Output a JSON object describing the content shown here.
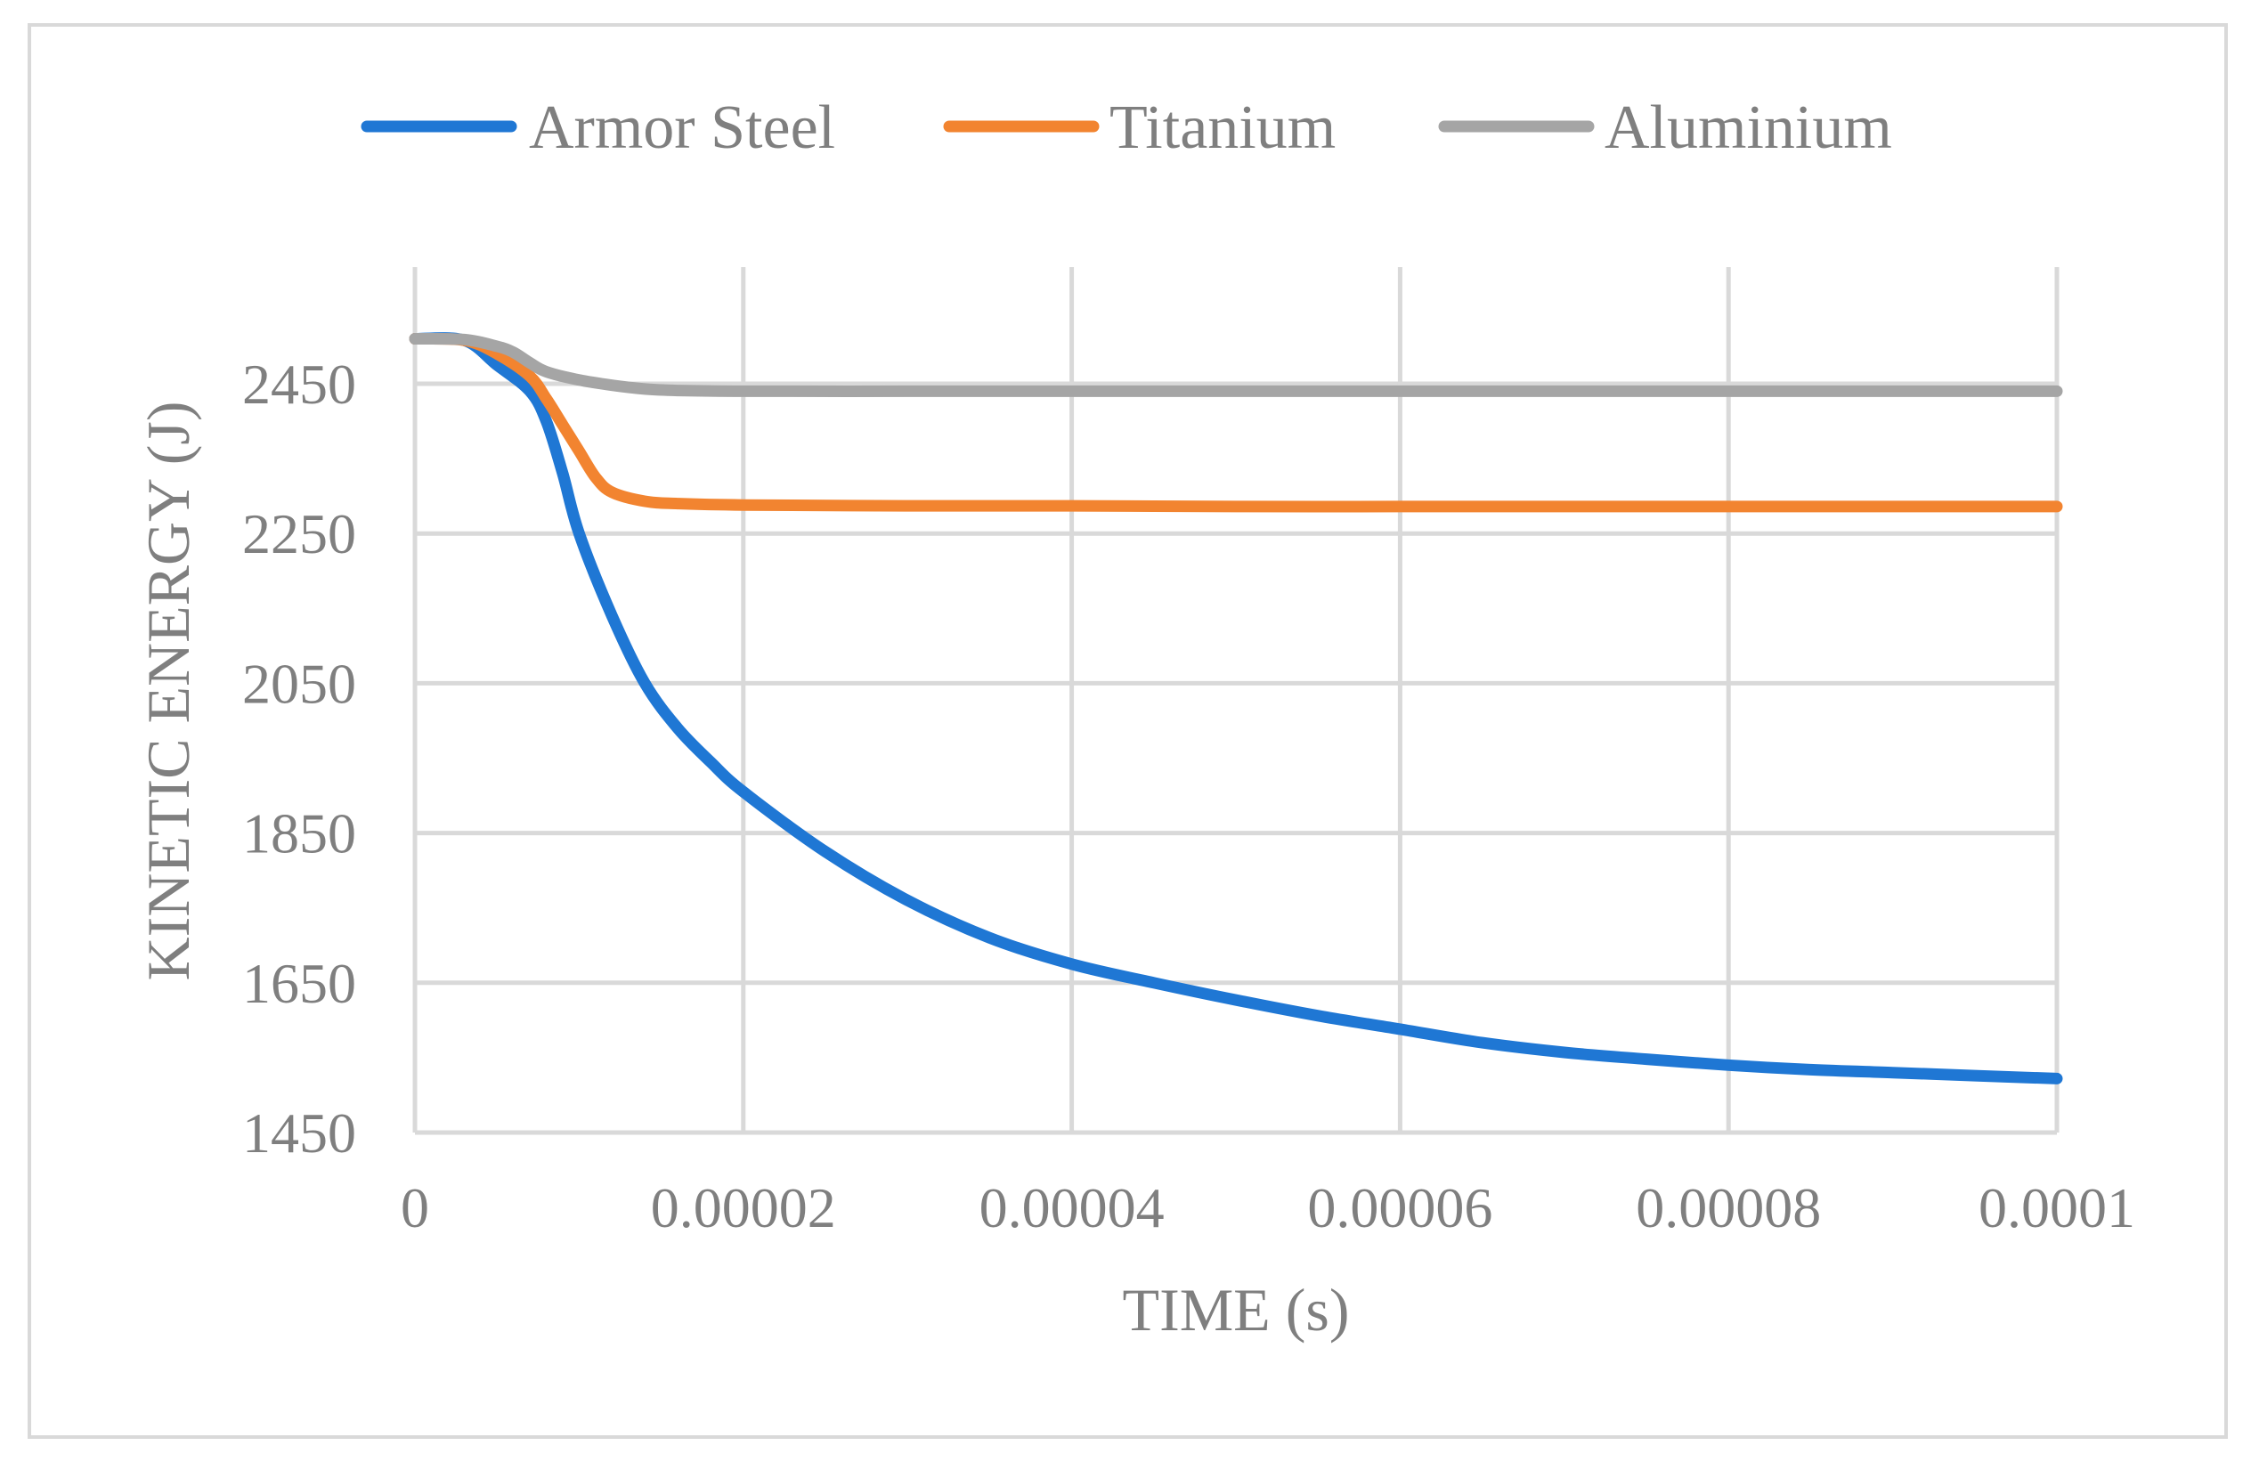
{
  "chart_data": {
    "type": "line",
    "title": "",
    "xlabel": "TIME (s)",
    "ylabel": "KINETIC ENERGY (J)",
    "xlim": [
      0,
      0.0001
    ],
    "ylim": [
      1450,
      2550
    ],
    "x_ticks": [
      "0",
      "0.00002",
      "0.00004",
      "0.00006",
      "0.00008",
      "0.0001"
    ],
    "x_tick_values": [
      0,
      2e-05,
      4e-05,
      6e-05,
      8e-05,
      0.0001
    ],
    "y_ticks": [
      "1450",
      "1650",
      "1850",
      "2050",
      "2250",
      "2450"
    ],
    "y_tick_values": [
      1450,
      1650,
      1850,
      2050,
      2250,
      2450
    ],
    "grid": true,
    "legend_position": "top-center",
    "series": [
      {
        "name": "Armor Steel",
        "color": "#1f77d4",
        "x": [
          0,
          3e-06,
          5e-06,
          7e-06,
          8e-06,
          9e-06,
          1e-05,
          1.2e-05,
          1.4e-05,
          1.6e-05,
          1.8e-05,
          2e-05,
          2.5e-05,
          3e-05,
          3.5e-05,
          4e-05,
          4.5e-05,
          5e-05,
          5.5e-05,
          6e-05,
          6.5e-05,
          7e-05,
          7.5e-05,
          8e-05,
          8.5e-05,
          9e-05,
          9.5e-05,
          0.0001
        ],
        "values": [
          2510,
          2508,
          2475,
          2440,
          2400,
          2330,
          2250,
          2140,
          2050,
          1990,
          1945,
          1905,
          1825,
          1760,
          1710,
          1675,
          1650,
          1627,
          1606,
          1588,
          1570,
          1557,
          1548,
          1540,
          1534,
          1530,
          1526,
          1522
        ]
      },
      {
        "name": "Titanium",
        "color": "#f28430",
        "x": [
          0,
          3e-06,
          5e-06,
          7e-06,
          8e-06,
          9e-06,
          1e-05,
          1.1e-05,
          1.2e-05,
          1.4e-05,
          1.6e-05,
          2e-05,
          3e-05,
          4e-05,
          5e-05,
          6e-05,
          7e-05,
          8e-05,
          9e-05,
          0.0001
        ],
        "values": [
          2510,
          2508,
          2490,
          2460,
          2430,
          2395,
          2360,
          2325,
          2305,
          2293,
          2290,
          2288,
          2287,
          2287,
          2286,
          2286,
          2286,
          2286,
          2286,
          2286
        ]
      },
      {
        "name": "Aluminium",
        "color": "#a5a5a5",
        "x": [
          0,
          3e-06,
          5e-06,
          6e-06,
          7e-06,
          8e-06,
          1e-05,
          1.2e-05,
          1.4e-05,
          1.6e-05,
          2e-05,
          3e-05,
          4e-05,
          5e-05,
          6e-05,
          7e-05,
          8e-05,
          9e-05,
          0.0001
        ],
        "values": [
          2510,
          2509,
          2500,
          2492,
          2478,
          2466,
          2455,
          2448,
          2443,
          2441,
          2440,
          2440,
          2440,
          2440,
          2440,
          2440,
          2440,
          2440,
          2440
        ]
      }
    ]
  }
}
